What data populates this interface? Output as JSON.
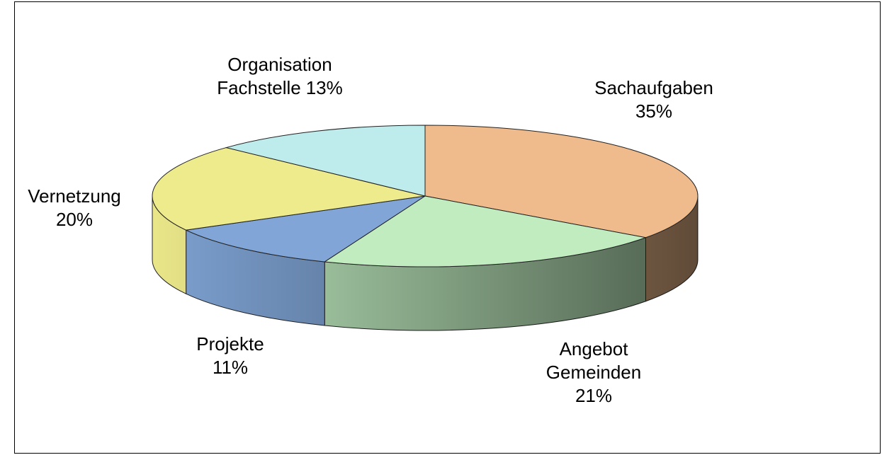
{
  "chart_data": {
    "type": "pie3d",
    "categories": [
      [
        "Sachaufgaben"
      ],
      [
        "Angebot",
        "Gemeinden"
      ],
      [
        "Projekte"
      ],
      [
        "Vernetzung"
      ],
      [
        "Organisation",
        "Fachstelle"
      ]
    ],
    "values": [
      35,
      21,
      11,
      20,
      13
    ],
    "value_labels": [
      "35%",
      "21%",
      "11%",
      "20%",
      "13%"
    ],
    "colors": [
      "#efbb8c",
      "#c0ecc0",
      "#80a5d6",
      "#eeeb8c",
      "#beecec"
    ]
  }
}
